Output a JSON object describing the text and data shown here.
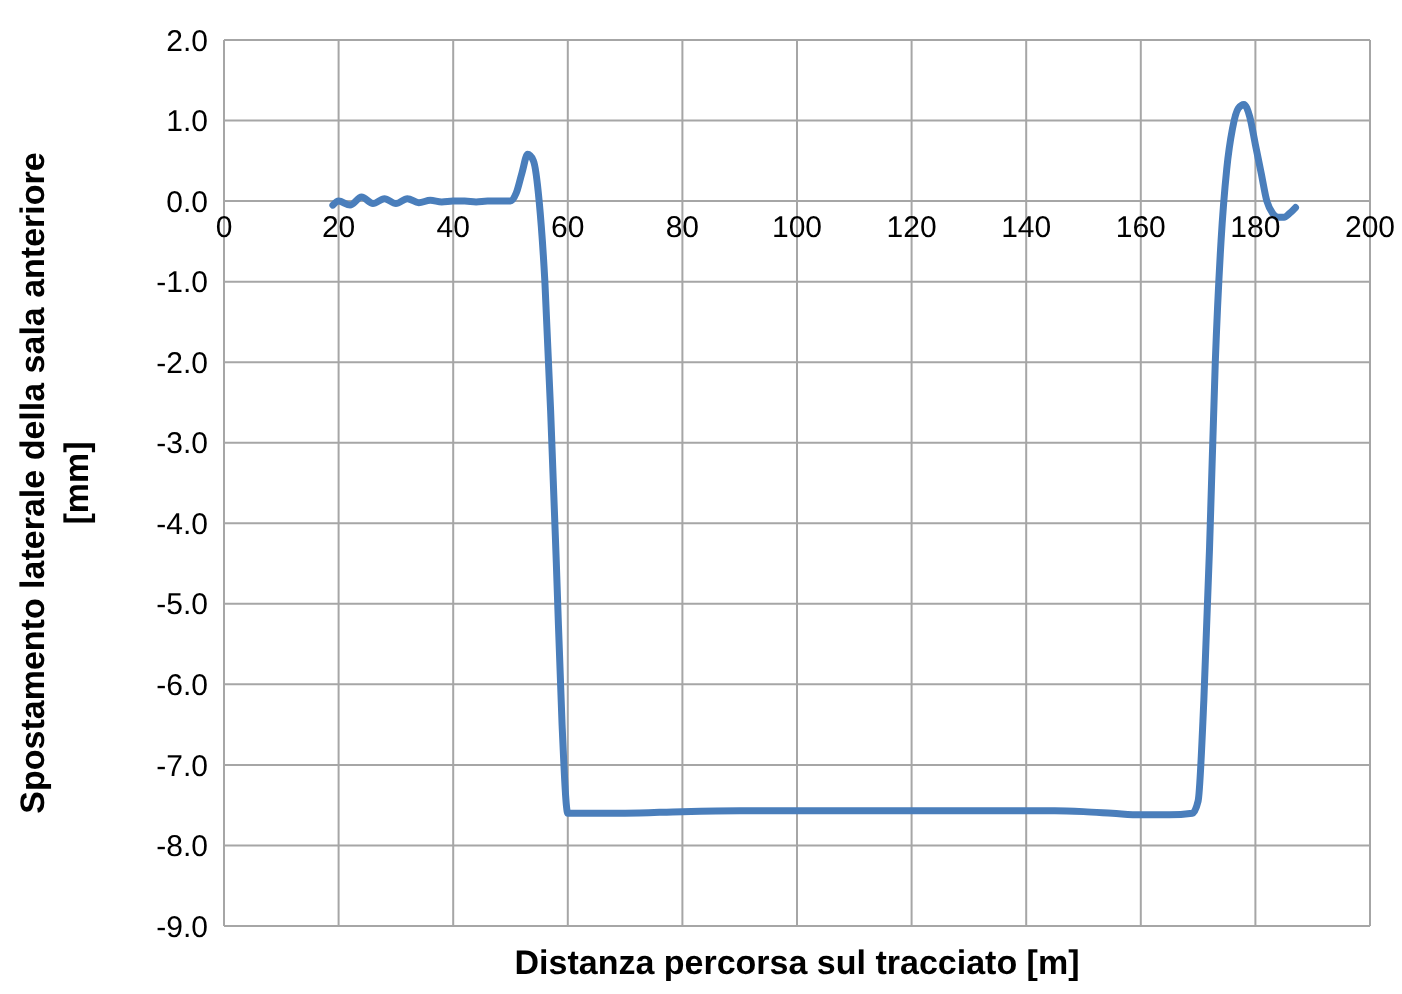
{
  "chart_data": {
    "type": "line",
    "xlabel": "Distanza percorsa sul tracciato [m]",
    "ylabel": "Spostamento laterale della sala anteriore [mm]",
    "x": [
      19,
      20,
      22,
      24,
      26,
      28,
      30,
      32,
      34,
      36,
      38,
      40,
      42,
      44,
      46,
      48,
      50,
      51,
      52,
      53,
      54,
      55,
      56,
      57,
      58,
      59,
      60,
      70,
      80,
      90,
      100,
      110,
      120,
      130,
      140,
      145,
      150,
      155,
      160,
      165,
      169,
      170,
      171,
      172,
      173,
      174,
      175,
      176,
      177,
      178,
      179,
      180,
      181,
      182,
      183,
      184,
      185,
      186,
      187
    ],
    "series": [
      {
        "color": "#4a7ebb",
        "values": [
          -0.05,
          0.0,
          -0.05,
          0.05,
          -0.03,
          0.03,
          -0.03,
          0.03,
          -0.02,
          0.01,
          -0.01,
          0.0,
          0.0,
          -0.01,
          0.0,
          0.0,
          0.0,
          0.1,
          0.35,
          0.58,
          0.5,
          0.0,
          -1.0,
          -2.6,
          -4.5,
          -6.5,
          -7.6,
          -7.6,
          -7.58,
          -7.57,
          -7.57,
          -7.57,
          -7.57,
          -7.57,
          -7.57,
          -7.57,
          -7.58,
          -7.6,
          -7.62,
          -7.62,
          -7.6,
          -7.45,
          -6.2,
          -4.3,
          -2.0,
          -0.5,
          0.4,
          0.9,
          1.15,
          1.2,
          1.05,
          0.7,
          0.35,
          0.0,
          -0.15,
          -0.2,
          -0.2,
          -0.15,
          -0.08
        ]
      }
    ],
    "xlim": [
      0,
      200
    ],
    "xticks": [
      0,
      20,
      40,
      60,
      80,
      100,
      120,
      140,
      160,
      180,
      200
    ],
    "ylim": [
      -9,
      2
    ],
    "yticks": [
      {
        "value": -9,
        "label": "-9.0"
      },
      {
        "value": -8,
        "label": "-8.0"
      },
      {
        "value": -7,
        "label": "-7.0"
      },
      {
        "value": -6,
        "label": "-6.0"
      },
      {
        "value": -5,
        "label": "-5.0"
      },
      {
        "value": -4,
        "label": "-4.0"
      },
      {
        "value": -3,
        "label": "-3.0"
      },
      {
        "value": -2,
        "label": "-2.0"
      },
      {
        "value": -1,
        "label": "-1.0"
      },
      {
        "value": 0,
        "label": "0.0"
      },
      {
        "value": 1,
        "label": "1.0"
      },
      {
        "value": 2,
        "label": "2.0"
      }
    ],
    "grid": true,
    "legend": false,
    "marker": "none",
    "line_style": "solid"
  }
}
